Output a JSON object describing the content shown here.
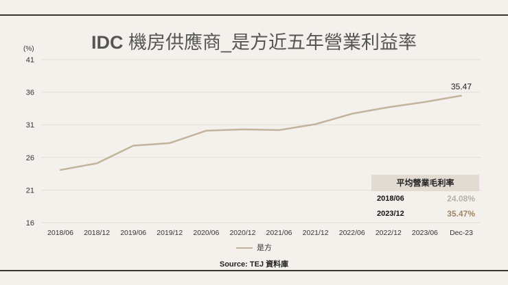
{
  "title_bold": "IDC",
  "title_rest": " 機房供應商_是方近五年營業利益率",
  "unit": "(%)",
  "source": "Source: TEJ 資料庫",
  "colors": {
    "line": "#c3b39c",
    "grid": "#e2ddd6",
    "background": "#f4f1ed",
    "table_header": "#e1dbd2",
    "highlight": "#a08464"
  },
  "chart_data": {
    "type": "line",
    "title": "IDC 機房供應商_是方近五年營業利益率",
    "ylabel": "(%)",
    "ylim": [
      16,
      41
    ],
    "yticks": [
      41,
      36,
      31,
      26,
      21,
      16
    ],
    "grid": true,
    "legend_placement": "bottom",
    "categories": [
      "2018/06",
      "2018/12",
      "2019/06",
      "2019/12",
      "2020/06",
      "2020/12",
      "2021/06",
      "2021/12",
      "2022/06",
      "2022/12",
      "2023/06",
      "Dec-23"
    ],
    "series": [
      {
        "name": "是方",
        "values": [
          24.08,
          25.1,
          27.8,
          28.2,
          30.1,
          30.3,
          30.2,
          31.1,
          32.7,
          33.7,
          34.5,
          35.47
        ]
      }
    ],
    "annotations": [
      {
        "category": "Dec-23",
        "text": "35.47"
      }
    ]
  },
  "table": {
    "header": "平均營業毛利率",
    "rows": [
      {
        "period": "2018/06",
        "value": "24.08%"
      },
      {
        "period": "2023/12",
        "value": "35.47%"
      }
    ]
  }
}
